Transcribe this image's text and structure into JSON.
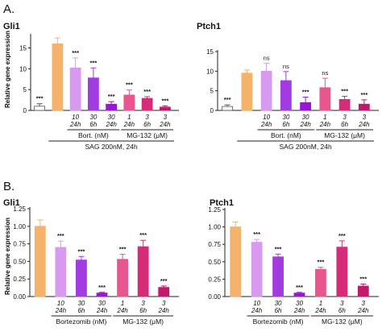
{
  "figure": {
    "panel_labels": [
      "A.",
      "B."
    ],
    "ylabel": "Relative gene expression"
  },
  "chart_data": [
    {
      "type": "bar",
      "panel": "A.",
      "title": "Gli1",
      "ylabel": "Relative gene expression",
      "ylim": [
        0,
        18
      ],
      "yticks": [
        0,
        5,
        10,
        15
      ],
      "categories": [
        "",
        "",
        "10\n24h",
        "30\n6h",
        "30\n24h",
        "1\n24h",
        "3\n6h",
        "3\n24h"
      ],
      "values": [
        1.0,
        16.0,
        10.2,
        7.8,
        1.5,
        3.7,
        2.9,
        0.8
      ],
      "errors": [
        0.6,
        1.4,
        2.4,
        2.4,
        0.6,
        1.2,
        0.4,
        0.3
      ],
      "colors": [
        "#ffffff",
        "#f5b26b",
        "#d89af0",
        "#a23be0",
        "#9a16d6",
        "#e8558f",
        "#d52c7a",
        "#c2186e"
      ],
      "significance": [
        "***",
        "",
        "***",
        "***",
        "***",
        "***",
        "***",
        "***"
      ],
      "groups": [
        {
          "label": "Bort. (nM)",
          "from": 2,
          "to": 4
        },
        {
          "label": "MG-132 (μM)",
          "from": 5,
          "to": 7
        }
      ],
      "treatment": {
        "label": "SAG 200nM, 24h",
        "from": 1,
        "to": 7
      }
    },
    {
      "type": "bar",
      "panel": "A.",
      "title": "Ptch1",
      "ylim": [
        0,
        15
      ],
      "yticks": [
        0,
        5,
        10,
        15
      ],
      "categories": [
        "",
        "",
        "10\n24h",
        "30\n6h",
        "30\n24h",
        "1\n24h",
        "3\n6h",
        "3\n24h"
      ],
      "values": [
        1.0,
        9.5,
        10.0,
        7.6,
        2.0,
        5.8,
        2.8,
        1.6
      ],
      "errors": [
        0.4,
        0.8,
        2.0,
        2.3,
        1.4,
        2.4,
        0.8,
        1.1
      ],
      "colors": [
        "#ffffff",
        "#f5b26b",
        "#d89af0",
        "#a23be0",
        "#9a16d6",
        "#e8558f",
        "#d52c7a",
        "#c2186e"
      ],
      "significance": [
        "***",
        "",
        "ns",
        "ns",
        "***",
        "ns",
        "***",
        "***"
      ],
      "groups": [
        {
          "label": "Bort. (nM)",
          "from": 2,
          "to": 4
        },
        {
          "label": "MG-132 (μM)",
          "from": 5,
          "to": 7
        }
      ],
      "treatment": {
        "label": "SAG 200nM, 24h",
        "from": 1,
        "to": 7
      }
    },
    {
      "type": "bar",
      "panel": "B.",
      "title": "Gli1",
      "ylabel": "Relative gene expression",
      "ylim": [
        0,
        1.25
      ],
      "yticks": [
        "0.00",
        "0.25",
        "0.50",
        "0.75",
        "1.00",
        "1.25"
      ],
      "categories": [
        "",
        "10\n24h",
        "30\n6h",
        "30\n24h",
        "1\n24h",
        "3\n6h",
        "3\n24h"
      ],
      "values": [
        1.0,
        0.7,
        0.52,
        0.05,
        0.53,
        0.71,
        0.13
      ],
      "errors": [
        0.09,
        0.09,
        0.05,
        0.01,
        0.07,
        0.09,
        0.02
      ],
      "colors": [
        "#f5b26b",
        "#d89af0",
        "#a23be0",
        "#9a16d6",
        "#e8558f",
        "#d52c7a",
        "#c2186e"
      ],
      "significance": [
        "",
        "***",
        "***",
        "***",
        "***",
        "***",
        "***"
      ],
      "groups": [
        {
          "label": "Bortezomib (nM)",
          "from": 1,
          "to": 3
        },
        {
          "label": "MG-132 (μM)",
          "from": 4,
          "to": 6
        }
      ]
    },
    {
      "type": "bar",
      "panel": "B.",
      "title": "Ptch1",
      "ylim": [
        0,
        1.25
      ],
      "yticks": [
        "0.00",
        "0.25",
        "0.50",
        "0.75",
        "1.00",
        "1.25"
      ],
      "categories": [
        "",
        "10\n24h",
        "30\n6h",
        "30\n24h",
        "1\n24h",
        "3\n6h",
        "3\n24h"
      ],
      "values": [
        1.0,
        0.78,
        0.57,
        0.05,
        0.39,
        0.71,
        0.15
      ],
      "errors": [
        0.07,
        0.04,
        0.04,
        0.01,
        0.03,
        0.09,
        0.03
      ],
      "colors": [
        "#f5b26b",
        "#d89af0",
        "#a23be0",
        "#9a16d6",
        "#e8558f",
        "#d52c7a",
        "#c2186e"
      ],
      "significance": [
        "",
        "***",
        "***",
        "***",
        "***",
        "***",
        "***"
      ],
      "groups": [
        {
          "label": "Bortezomib (nM)",
          "from": 1,
          "to": 3
        },
        {
          "label": "MG-132 (μM)",
          "from": 4,
          "to": 6
        }
      ]
    }
  ]
}
